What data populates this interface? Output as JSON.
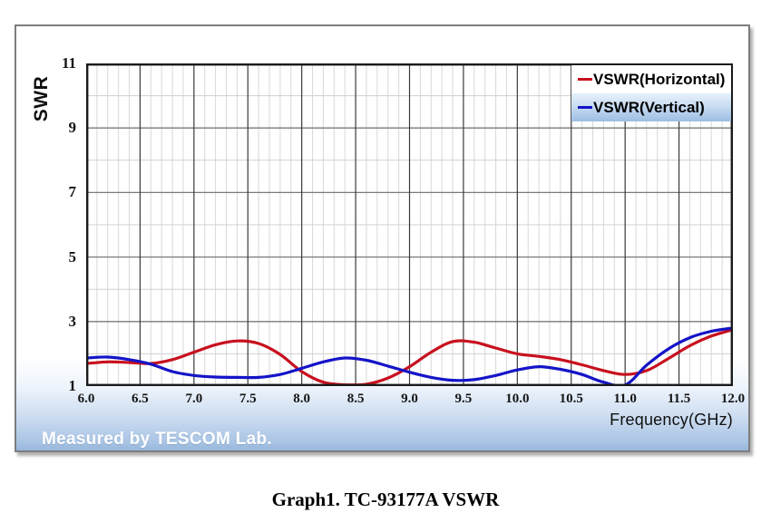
{
  "watermark": "Measured by TESCOM Lab.",
  "caption": "Graph1. TC-93177A VSWR",
  "legend": {
    "items": [
      {
        "label": "VSWR(Horizontal)",
        "color": "#c8101e",
        "highlighted": false
      },
      {
        "label": "VSWR(Vertical)",
        "color": "#1414c8",
        "highlighted": true
      }
    ]
  },
  "colors": {
    "horizontal_series": "#c8101e",
    "vertical_series": "#1414c8",
    "frame_gradient_bottom": "#97b7dc",
    "grid_major_x": "#3a3a3a",
    "grid_minor_x": "#d8d8d8",
    "grid_major_y": "#7a7a7a",
    "grid_minor_y": "#d0d0d0",
    "plot_border": "#1a1a1a"
  },
  "chart_data": {
    "type": "line",
    "title": "",
    "xlabel": "Frequency(GHz)",
    "ylabel": "SWR",
    "xlim": [
      6.0,
      12.0
    ],
    "ylim": [
      1,
      11
    ],
    "grid": "on",
    "legend_position": "top-right-inside",
    "x_tick_labels": [
      "6.0",
      "6.5",
      "7.0",
      "7.5",
      "8.0",
      "8.5",
      "9.0",
      "9.5",
      "10.0",
      "10.5",
      "11.0",
      "11.5",
      "12.0"
    ],
    "x_major_ticks": [
      6.0,
      6.5,
      7.0,
      7.5,
      8.0,
      8.5,
      9.0,
      9.5,
      10.0,
      10.5,
      11.0,
      11.5,
      12.0
    ],
    "x_minor_step": 0.1,
    "y_tick_labels": [
      "11",
      "9",
      "7",
      "5",
      "3",
      "1"
    ],
    "y_major_ticks": [
      11,
      9,
      7,
      5,
      3,
      1
    ],
    "y_minor_step": 1,
    "x": [
      6.0,
      6.2,
      6.4,
      6.6,
      6.8,
      7.0,
      7.2,
      7.4,
      7.6,
      7.8,
      8.0,
      8.2,
      8.4,
      8.6,
      8.8,
      9.0,
      9.2,
      9.4,
      9.6,
      9.8,
      10.0,
      10.2,
      10.4,
      10.6,
      10.8,
      11.0,
      11.2,
      11.4,
      11.6,
      11.8,
      12.0
    ],
    "series": [
      {
        "name": "VSWR(Horizontal)",
        "color": "#c8101e",
        "values": [
          1.7,
          1.75,
          1.73,
          1.7,
          1.82,
          2.05,
          2.28,
          2.4,
          2.32,
          1.98,
          1.45,
          1.12,
          1.04,
          1.06,
          1.25,
          1.6,
          2.05,
          2.38,
          2.36,
          2.18,
          2.0,
          1.92,
          1.82,
          1.66,
          1.48,
          1.36,
          1.48,
          1.85,
          2.25,
          2.55,
          2.75
        ]
      },
      {
        "name": "VSWR(Vertical)",
        "color": "#1414c8",
        "values": [
          1.87,
          1.9,
          1.82,
          1.68,
          1.45,
          1.33,
          1.28,
          1.27,
          1.27,
          1.36,
          1.55,
          1.75,
          1.87,
          1.8,
          1.62,
          1.43,
          1.27,
          1.18,
          1.2,
          1.33,
          1.5,
          1.6,
          1.52,
          1.36,
          1.12,
          1.03,
          1.65,
          2.15,
          2.5,
          2.7,
          2.8
        ]
      }
    ]
  }
}
